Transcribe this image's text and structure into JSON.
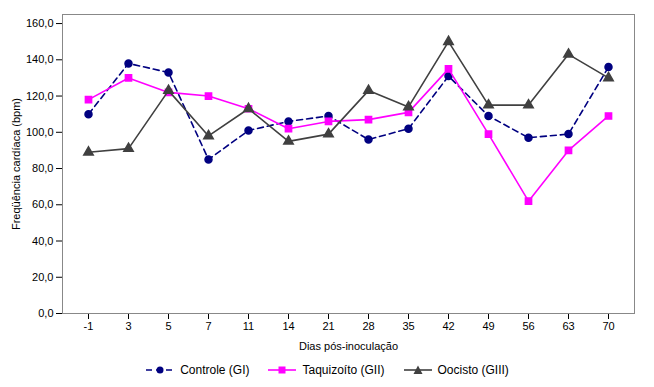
{
  "chart_data": {
    "type": "line",
    "xlabel": "Dias pós-inoculação",
    "ylabel": "Freqüência cardíaca (bpm)",
    "categories": [
      "-1",
      "3",
      "5",
      "7",
      "11",
      "14",
      "21",
      "28",
      "35",
      "42",
      "49",
      "56",
      "63",
      "70"
    ],
    "series": [
      {
        "name": "Controle (GI)",
        "color": "#000080",
        "marker": "circle",
        "line_style": "dashed",
        "values": [
          110,
          138,
          133,
          85,
          101,
          106,
          109,
          96,
          102,
          131,
          109,
          97,
          99,
          136
        ]
      },
      {
        "name": "Taquizoíto (GII)",
        "color": "#FF00FF",
        "marker": "square",
        "line_style": "solid",
        "values": [
          118,
          130,
          122,
          120,
          113,
          102,
          106,
          107,
          111,
          135,
          99,
          62,
          90,
          109
        ]
      },
      {
        "name": "Oocisto (GIII)",
        "color": "#404040",
        "marker": "triangle",
        "line_style": "solid",
        "values": [
          89,
          91,
          123,
          98,
          113,
          95,
          99,
          123,
          114,
          150,
          115,
          115,
          143,
          130
        ]
      }
    ],
    "ylim": [
      0,
      165
    ],
    "yticks": [
      {
        "value": 0,
        "label": "0,0"
      },
      {
        "value": 20,
        "label": "20,0"
      },
      {
        "value": 40,
        "label": "40,0"
      },
      {
        "value": 60,
        "label": "60,0"
      },
      {
        "value": 80,
        "label": "80,0"
      },
      {
        "value": 100,
        "label": "100,0"
      },
      {
        "value": 120,
        "label": "120,0"
      },
      {
        "value": 140,
        "label": "140,0"
      },
      {
        "value": 160,
        "label": "160,0"
      }
    ],
    "grid": false,
    "legend": "bottom"
  }
}
